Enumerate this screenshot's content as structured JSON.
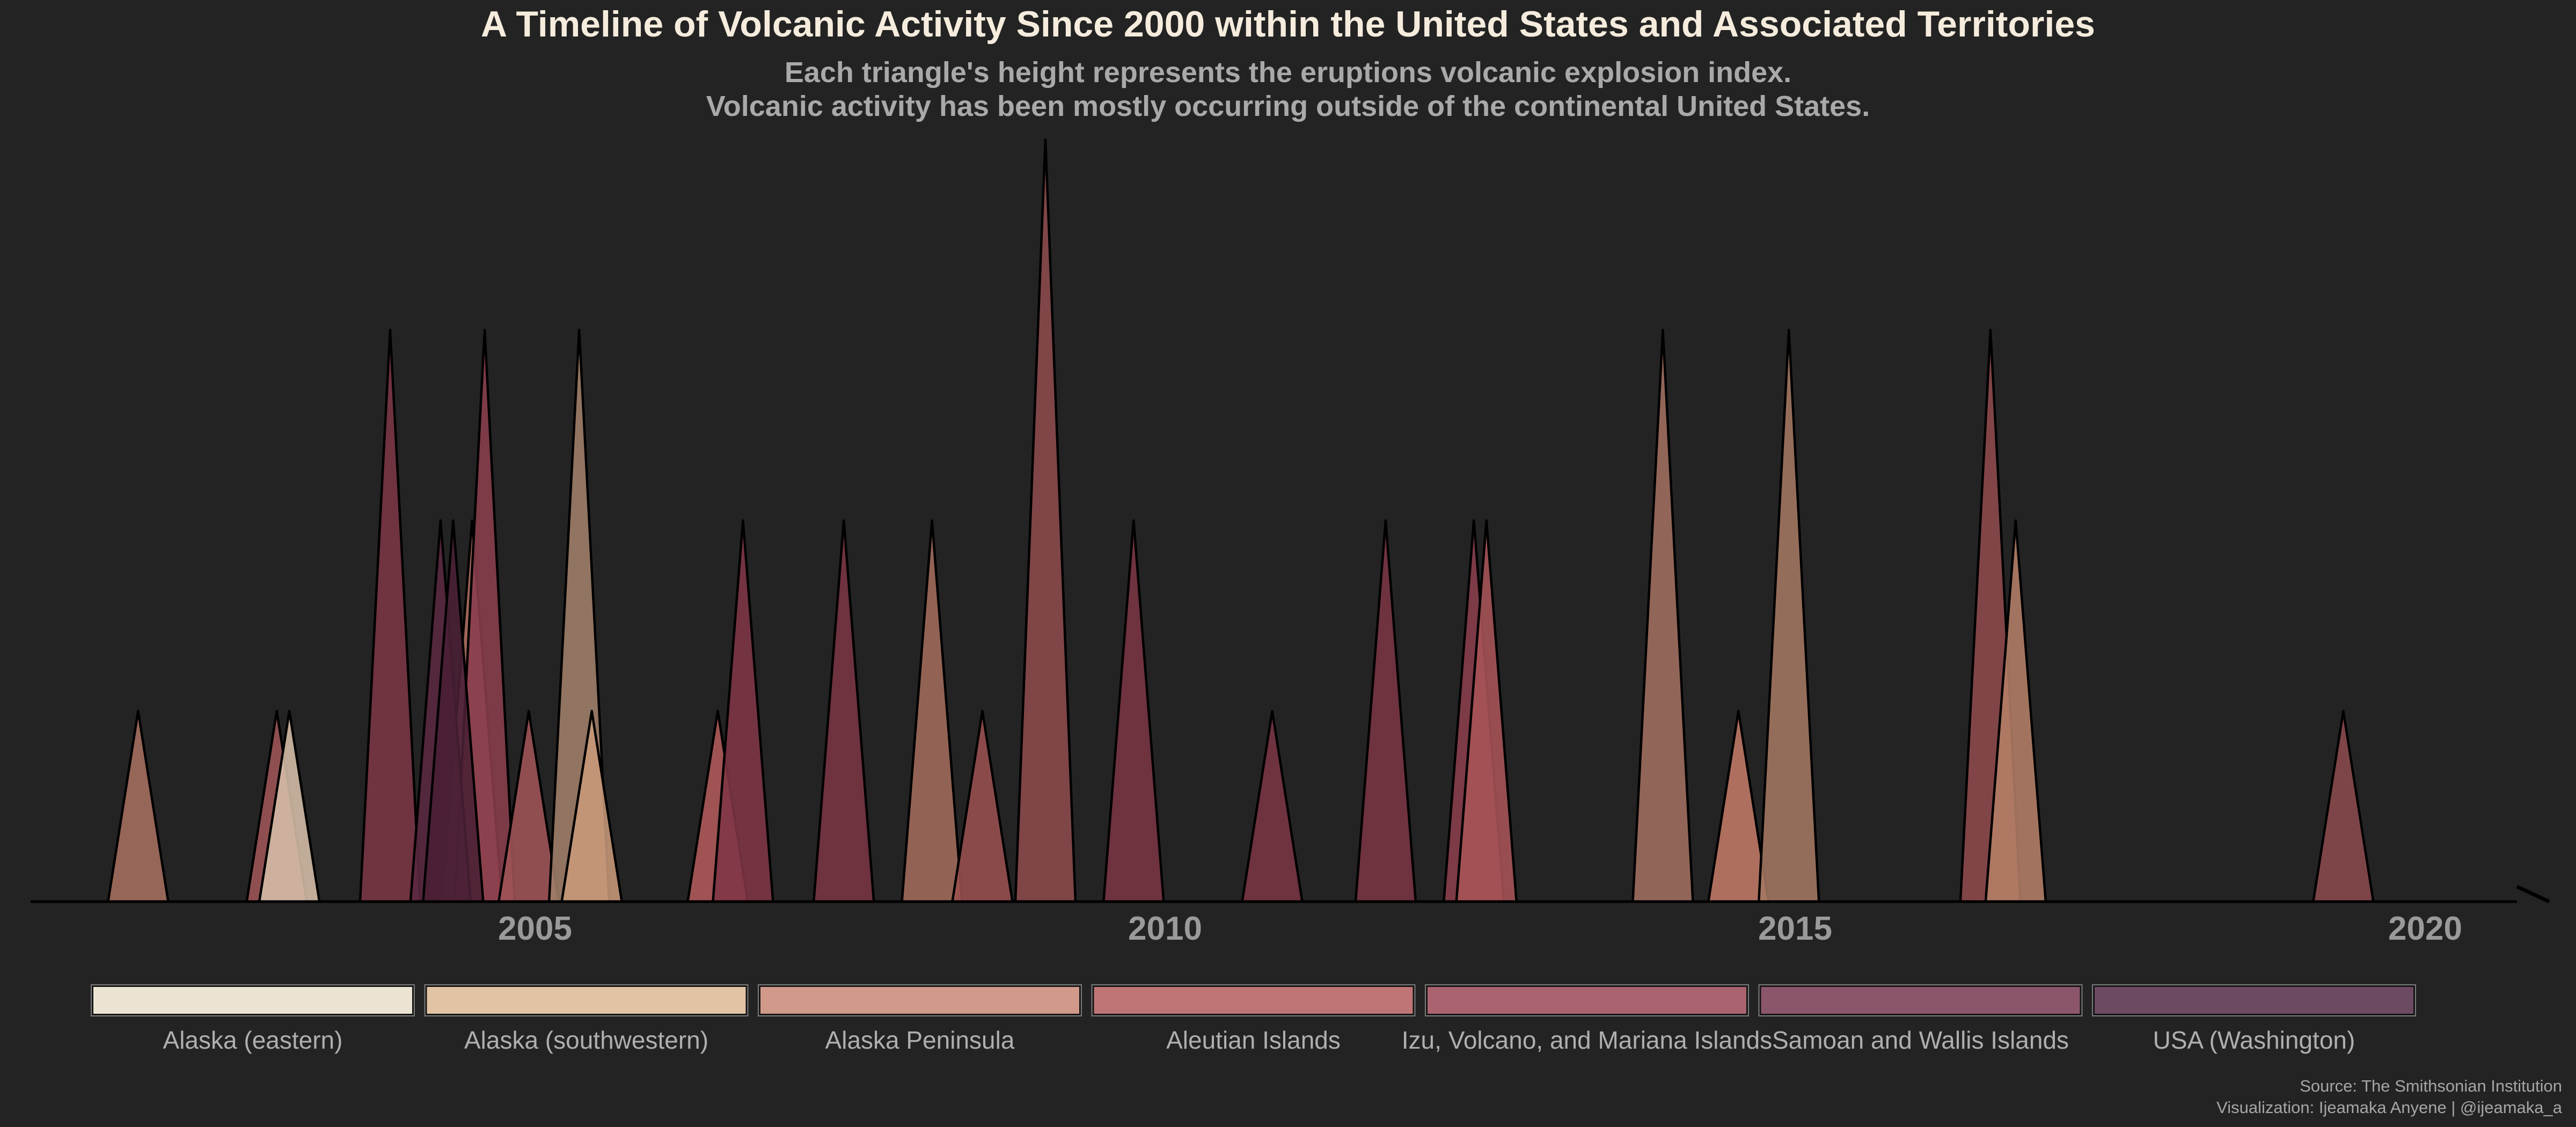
{
  "chart_data": {
    "type": "area",
    "title": "A Timeline of Volcanic Activity Since 2000 within the United States and Associated Territories",
    "subtitle": [
      "Each triangle's height represents the eruptions volcanic explosion index.",
      "Volcanic activity has been mostly occurring outside of the continental United States."
    ],
    "xlabel": "",
    "ylabel": "",
    "xlim": [
      2001.0,
      2021.0
    ],
    "ylim": [
      0,
      4
    ],
    "x_ticks": [
      2005,
      2010,
      2015,
      2020
    ],
    "grid": false,
    "legend_position": "bottom",
    "colors": {
      "background": "#232323",
      "title": "#F5ECDD",
      "subtitle": "#A9A9A9",
      "axis_text": "#9A9A9A",
      "legend_text": "#AFAFAF",
      "caption": "#A6A6A6",
      "outline": "#000000"
    },
    "series": [
      {
        "name": "Alaska (eastern)",
        "color": "#ECE4D2"
      },
      {
        "name": "Alaska (southwestern)",
        "color": "#E2C3A4"
      },
      {
        "name": "Alaska Peninsula",
        "color": "#D0998A"
      },
      {
        "name": "Aleutian Islands",
        "color": "#BF7575"
      },
      {
        "name": "Izu, Volcano, and Mariana Islands",
        "color": "#A96470"
      },
      {
        "name": "Samoan and Wallis Islands",
        "color": "#8B566B"
      },
      {
        "name": "USA (Washington)",
        "color": "#6C4A62"
      }
    ],
    "eruptions": [
      {
        "year": 2001.85,
        "vei": 1,
        "region": "Alaska Peninsula",
        "color": "#A67060"
      },
      {
        "year": 2002.95,
        "vei": 1,
        "region": "Aleutian Islands",
        "color": "#9E5558"
      },
      {
        "year": 2003.05,
        "vei": 1,
        "region": "Alaska (eastern)",
        "color": "#D6BFA8"
      },
      {
        "year": 2003.85,
        "vei": 3,
        "region": "Samoan and Wallis Islands",
        "color": "#7B3544"
      },
      {
        "year": 2004.5,
        "vei": 2,
        "region": "Alaska Peninsula",
        "color": "#B07060"
      },
      {
        "year": 2004.6,
        "vei": 3,
        "region": "Aleutian Islands",
        "color": "#8A3E4C"
      },
      {
        "year": 2004.25,
        "vei": 2,
        "region": "USA (Washington)",
        "color": "#5A2840"
      },
      {
        "year": 2004.35,
        "vei": 2,
        "region": "USA (Washington)",
        "color": "#4A2035"
      },
      {
        "year": 2004.95,
        "vei": 1,
        "region": "Aleutian Islands",
        "color": "#A05458"
      },
      {
        "year": 2005.35,
        "vei": 3,
        "region": "Alaska (southwestern)",
        "color": "#A0806A"
      },
      {
        "year": 2005.45,
        "vei": 1,
        "region": "Alaska (southwestern)",
        "color": "#C89A7A"
      },
      {
        "year": 2006.45,
        "vei": 1,
        "region": "Aleutian Islands",
        "color": "#B05A5A"
      },
      {
        "year": 2006.65,
        "vei": 2,
        "region": "Izu, Volcano, and Mariana Islands",
        "color": "#7F3545"
      },
      {
        "year": 2007.45,
        "vei": 2,
        "region": "Samoan and Wallis Islands",
        "color": "#7A3443"
      },
      {
        "year": 2008.15,
        "vei": 2,
        "region": "Alaska Peninsula",
        "color": "#A26C5C"
      },
      {
        "year": 2008.55,
        "vei": 1,
        "region": "Aleutian Islands",
        "color": "#9A5050"
      },
      {
        "year": 2009.05,
        "vei": 4,
        "region": "Aleutian Islands",
        "color": "#8C4A4C"
      },
      {
        "year": 2009.75,
        "vei": 2,
        "region": "Samoan and Wallis Islands",
        "color": "#7A3443"
      },
      {
        "year": 2010.85,
        "vei": 1,
        "region": "Samoan and Wallis Islands",
        "color": "#7A3443"
      },
      {
        "year": 2011.75,
        "vei": 2,
        "region": "Samoan and Wallis Islands",
        "color": "#7A3443"
      },
      {
        "year": 2012.45,
        "vei": 2,
        "region": "Izu, Volcano, and Mariana Islands",
        "color": "#8A3E4C"
      },
      {
        "year": 2012.55,
        "vei": 2,
        "region": "Aleutian Islands",
        "color": "#A85458"
      },
      {
        "year": 2013.95,
        "vei": 3,
        "region": "Alaska Peninsula",
        "color": "#A06E60"
      },
      {
        "year": 2014.55,
        "vei": 1,
        "region": "Alaska Peninsula",
        "color": "#C27A68"
      },
      {
        "year": 2014.95,
        "vei": 3,
        "region": "Alaska Peninsula",
        "color": "#A47862"
      },
      {
        "year": 2016.55,
        "vei": 3,
        "region": "Aleutian Islands",
        "color": "#8E4A4C"
      },
      {
        "year": 2016.75,
        "vei": 2,
        "region": "Alaska Peninsula",
        "color": "#B48068"
      },
      {
        "year": 2019.35,
        "vei": 1,
        "region": "Aleutian Islands",
        "color": "#8A4A4C"
      }
    ],
    "caption": [
      "Source: The Smithsonian Institution",
      "Visualization: Ijeamaka Anyene | @ijeamaka_a"
    ]
  }
}
